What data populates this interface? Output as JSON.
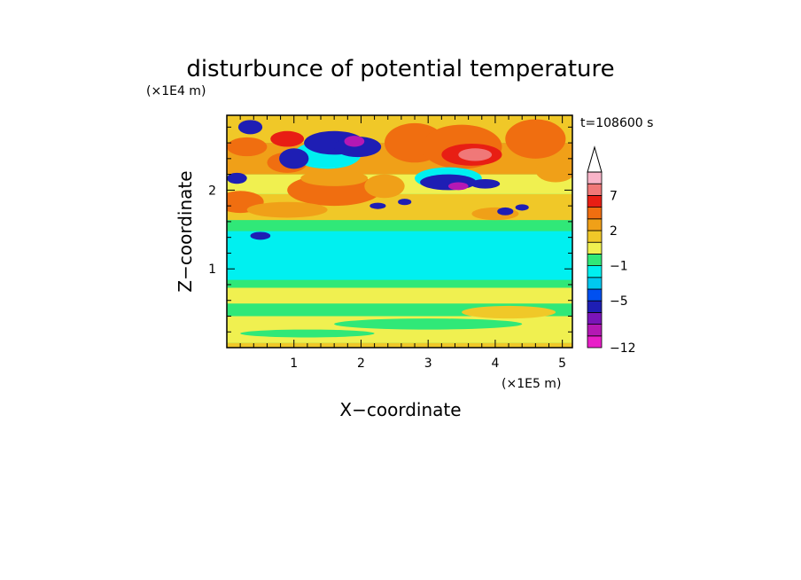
{
  "chart_data": {
    "type": "heatmap",
    "title": "disturbunce of potential temperature",
    "xlabel": "X−coordinate",
    "ylabel": "Z−coordinate",
    "x_unit": "(×1E5 m)",
    "y_unit": "(×1E4 m)",
    "time_label": "t=108600 s",
    "xlim": [
      0,
      5.15
    ],
    "ylim": [
      0,
      2.95
    ],
    "x_ticks": [
      "1",
      "2",
      "3",
      "4",
      "5"
    ],
    "y_ticks": [
      "1",
      "2"
    ],
    "colorbar": {
      "levels": [
        -12,
        -11,
        -9,
        -7,
        -5,
        -3,
        -2,
        -1,
        0,
        1,
        2,
        3,
        5,
        7,
        9,
        11
      ],
      "colors": [
        "#e81ec8",
        "#b418b4",
        "#7a14b8",
        "#1e1eb4",
        "#0050f0",
        "#00c8f0",
        "#00f0f0",
        "#30e878",
        "#f0f050",
        "#f0c828",
        "#f0a018",
        "#f06e10",
        "#e81e14",
        "#f07878",
        "#f8b4c8"
      ],
      "tick_labels": [
        "7",
        "2",
        "−1",
        "−5",
        "−12"
      ],
      "extend": "max",
      "extend_color": "#ffffff"
    },
    "field": {
      "background": "#30e878",
      "bands": [
        {
          "z": [
            0.0,
            0.06
          ],
          "value": 1
        },
        {
          "z": [
            0.06,
            0.4
          ],
          "value": 0.5
        },
        {
          "z": [
            0.4,
            0.56
          ],
          "value": -0.5
        },
        {
          "z": [
            0.56,
            0.76
          ],
          "value": 0.5
        },
        {
          "z": [
            0.76,
            0.86
          ],
          "value": -0.5
        },
        {
          "z": [
            0.86,
            1.48
          ],
          "value": -1.5
        },
        {
          "z": [
            1.48,
            1.62
          ],
          "value": -0.5
        },
        {
          "z": [
            1.62,
            1.95
          ],
          "value": 1
        },
        {
          "z": [
            1.95,
            2.2
          ],
          "value": 0.5
        },
        {
          "z": [
            2.2,
            2.6
          ],
          "value": 2
        },
        {
          "z": [
            2.6,
            2.95
          ],
          "value": 1
        }
      ],
      "features": [
        {
          "x": 0.35,
          "z": 2.8,
          "rx": 0.18,
          "rz": 0.09,
          "value": -6
        },
        {
          "x": 0.3,
          "z": 2.55,
          "rx": 0.3,
          "rz": 0.12,
          "value": 3
        },
        {
          "x": 0.15,
          "z": 2.15,
          "rx": 0.15,
          "rz": 0.07,
          "value": -6
        },
        {
          "x": 0.2,
          "z": 1.85,
          "rx": 0.35,
          "rz": 0.14,
          "value": 3
        },
        {
          "x": 0.9,
          "z": 2.35,
          "rx": 0.3,
          "rz": 0.13,
          "value": 3
        },
        {
          "x": 0.9,
          "z": 2.65,
          "rx": 0.25,
          "rz": 0.1,
          "value": 6
        },
        {
          "x": 1.5,
          "z": 2.45,
          "rx": 0.5,
          "rz": 0.18,
          "value": -1.5
        },
        {
          "x": 1.0,
          "z": 2.4,
          "rx": 0.22,
          "rz": 0.13,
          "value": -6
        },
        {
          "x": 1.6,
          "z": 2.6,
          "rx": 0.45,
          "rz": 0.15,
          "value": -6
        },
        {
          "x": 1.95,
          "z": 2.55,
          "rx": 0.35,
          "rz": 0.13,
          "value": -6
        },
        {
          "x": 1.9,
          "z": 2.62,
          "rx": 0.15,
          "rz": 0.07,
          "value": -10
        },
        {
          "x": 1.6,
          "z": 2.0,
          "rx": 0.7,
          "rz": 0.2,
          "value": 4
        },
        {
          "x": 1.6,
          "z": 2.15,
          "rx": 0.5,
          "rz": 0.1,
          "value": 2.5
        },
        {
          "x": 2.35,
          "z": 2.05,
          "rx": 0.3,
          "rz": 0.15,
          "value": 2.5
        },
        {
          "x": 2.8,
          "z": 2.6,
          "rx": 0.45,
          "rz": 0.25,
          "value": 3.5
        },
        {
          "x": 3.5,
          "z": 2.55,
          "rx": 0.6,
          "rz": 0.28,
          "value": 4
        },
        {
          "x": 3.65,
          "z": 2.45,
          "rx": 0.45,
          "rz": 0.14,
          "value": 6
        },
        {
          "x": 3.7,
          "z": 2.45,
          "rx": 0.25,
          "rz": 0.08,
          "value": 8
        },
        {
          "x": 3.3,
          "z": 2.15,
          "rx": 0.5,
          "rz": 0.14,
          "value": -1.5
        },
        {
          "x": 3.3,
          "z": 2.1,
          "rx": 0.42,
          "rz": 0.1,
          "value": -6
        },
        {
          "x": 3.45,
          "z": 2.05,
          "rx": 0.15,
          "rz": 0.05,
          "value": -10
        },
        {
          "x": 3.85,
          "z": 2.08,
          "rx": 0.22,
          "rz": 0.06,
          "value": -6
        },
        {
          "x": 4.6,
          "z": 2.65,
          "rx": 0.45,
          "rz": 0.25,
          "value": 3.5
        },
        {
          "x": 4.9,
          "z": 2.25,
          "rx": 0.3,
          "rz": 0.15,
          "value": 2.5
        },
        {
          "x": 2.9,
          "z": 1.8,
          "rx": 0.9,
          "rz": 0.12,
          "value": 1
        },
        {
          "x": 4.3,
          "z": 1.75,
          "rx": 0.8,
          "rz": 0.13,
          "value": 1
        },
        {
          "x": 0.9,
          "z": 1.75,
          "rx": 0.6,
          "rz": 0.1,
          "value": 2.5
        },
        {
          "x": 4.0,
          "z": 1.7,
          "rx": 0.35,
          "rz": 0.08,
          "value": 2.5
        },
        {
          "x": 2.25,
          "z": 1.8,
          "rx": 0.12,
          "rz": 0.04,
          "value": -6
        },
        {
          "x": 2.65,
          "z": 1.85,
          "rx": 0.1,
          "rz": 0.04,
          "value": -6
        },
        {
          "x": 4.15,
          "z": 1.73,
          "rx": 0.12,
          "rz": 0.05,
          "value": -6
        },
        {
          "x": 4.4,
          "z": 1.78,
          "rx": 0.1,
          "rz": 0.04,
          "value": -6
        },
        {
          "x": 0.5,
          "z": 1.42,
          "rx": 0.15,
          "rz": 0.05,
          "value": -6
        },
        {
          "x": 1.2,
          "z": 0.18,
          "rx": 1.0,
          "rz": 0.05,
          "value": -0.5
        },
        {
          "x": 3.0,
          "z": 0.3,
          "rx": 1.4,
          "rz": 0.07,
          "value": -0.5
        },
        {
          "x": 4.2,
          "z": 0.45,
          "rx": 0.7,
          "rz": 0.08,
          "value": 1
        }
      ]
    }
  }
}
